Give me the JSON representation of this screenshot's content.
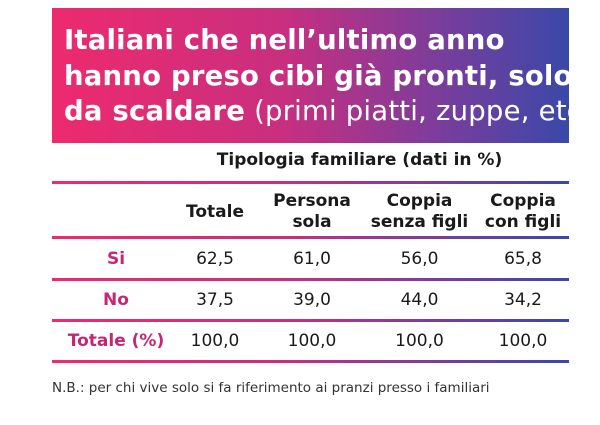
{
  "title": {
    "line1": "Italiani che nell’ultimo anno",
    "line2": "hanno preso cibi già pronti, solo",
    "line3_bold": "da scaldare",
    "line3_light": " (primi piatti, zuppe, etc.)"
  },
  "colors": {
    "gradient_start": "#ee2a6e",
    "gradient_end": "#3a48a8",
    "row_label": "#c42774"
  },
  "table": {
    "group_header": "Tipologia familiare (dati in %)",
    "columns": [
      {
        "line1": "Totale",
        "line2": ""
      },
      {
        "line1": "Persona",
        "line2": "sola"
      },
      {
        "line1": "Coppia",
        "line2": "senza figli"
      },
      {
        "line1": "Coppia",
        "line2": "con figli"
      }
    ],
    "rows": [
      {
        "label": "Si",
        "values": [
          "62,5",
          "61,0",
          "56,0",
          "65,8"
        ]
      },
      {
        "label": "No",
        "values": [
          "37,5",
          "39,0",
          "44,0",
          "34,2"
        ]
      },
      {
        "label": "Totale (%)",
        "values": [
          "100,0",
          "100,0",
          "100,0",
          "100,0"
        ]
      }
    ]
  },
  "note": "N.B.: per chi vive solo si fa riferimento ai pranzi presso i familiari"
}
